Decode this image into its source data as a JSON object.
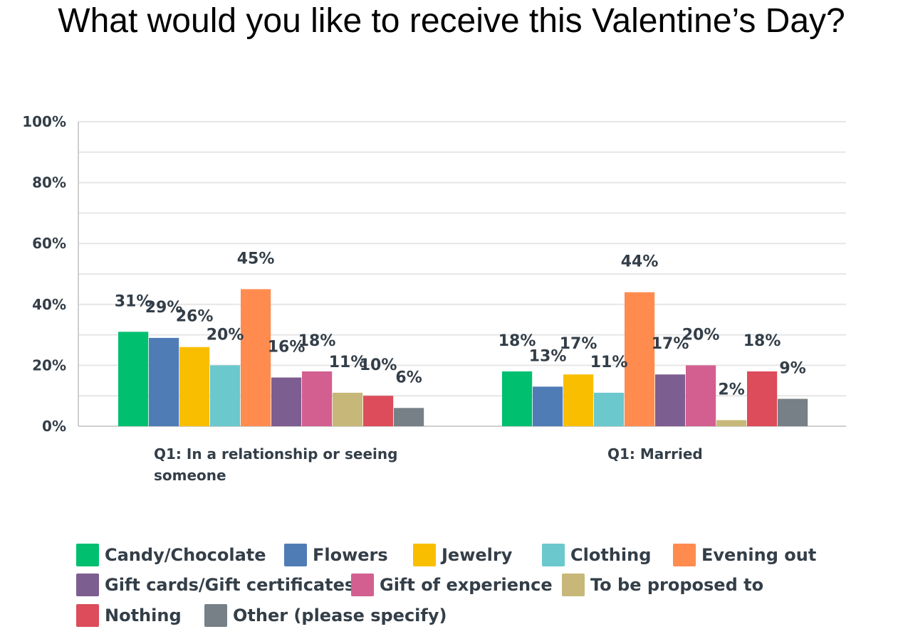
{
  "title": "What would you like to receive this Valentine’s Day?",
  "chart_data": {
    "type": "bar",
    "categories": [
      "Q1: In a relationship or seeing someone",
      "Q1: Married"
    ],
    "category_lines": [
      [
        "Q1: In a relationship or seeing",
        "someone"
      ],
      [
        "Q1: Married"
      ]
    ],
    "series": [
      {
        "name": "Candy/Chocolate",
        "color": "#00bf6f",
        "values": [
          31,
          18
        ],
        "labels": [
          "31%",
          "18%"
        ]
      },
      {
        "name": "Flowers",
        "color": "#507cb6",
        "values": [
          29,
          13
        ],
        "labels": [
          "29%",
          "13%"
        ]
      },
      {
        "name": "Jewelry",
        "color": "#f9be00",
        "values": [
          26,
          17
        ],
        "labels": [
          "26%",
          "17%"
        ]
      },
      {
        "name": "Clothing",
        "color": "#6bc8cd",
        "values": [
          20,
          11
        ],
        "labels": [
          "20%",
          "11%"
        ]
      },
      {
        "name": "Evening out",
        "color": "#ff8b4f",
        "values": [
          45,
          44
        ],
        "labels": [
          "45%",
          "44%"
        ]
      },
      {
        "name": "Gift cards/Gift certificates",
        "color": "#7d5e90",
        "values": [
          16,
          17
        ],
        "labels": [
          "16%",
          "17%"
        ]
      },
      {
        "name": "Gift of experience",
        "color": "#d25f90",
        "values": [
          18,
          20
        ],
        "labels": [
          "18%",
          "20%"
        ]
      },
      {
        "name": "To be proposed to",
        "color": "#c7b879",
        "values": [
          11,
          2
        ],
        "labels": [
          "11%",
          "2%"
        ]
      },
      {
        "name": "Nothing",
        "color": "#dc4c5a",
        "values": [
          10,
          18
        ],
        "labels": [
          "10%",
          "18%"
        ]
      },
      {
        "name": "Other (please specify)",
        "color": "#768086",
        "values": [
          6,
          9
        ],
        "labels": [
          "6%",
          "9%"
        ]
      }
    ],
    "ylim": [
      0,
      100
    ],
    "yticks": [
      0,
      20,
      40,
      60,
      80,
      100
    ],
    "ytick_labels": [
      "0%",
      "20%",
      "40%",
      "60%",
      "80%",
      "100%"
    ],
    "grid": true,
    "legend_position": "bottom"
  }
}
